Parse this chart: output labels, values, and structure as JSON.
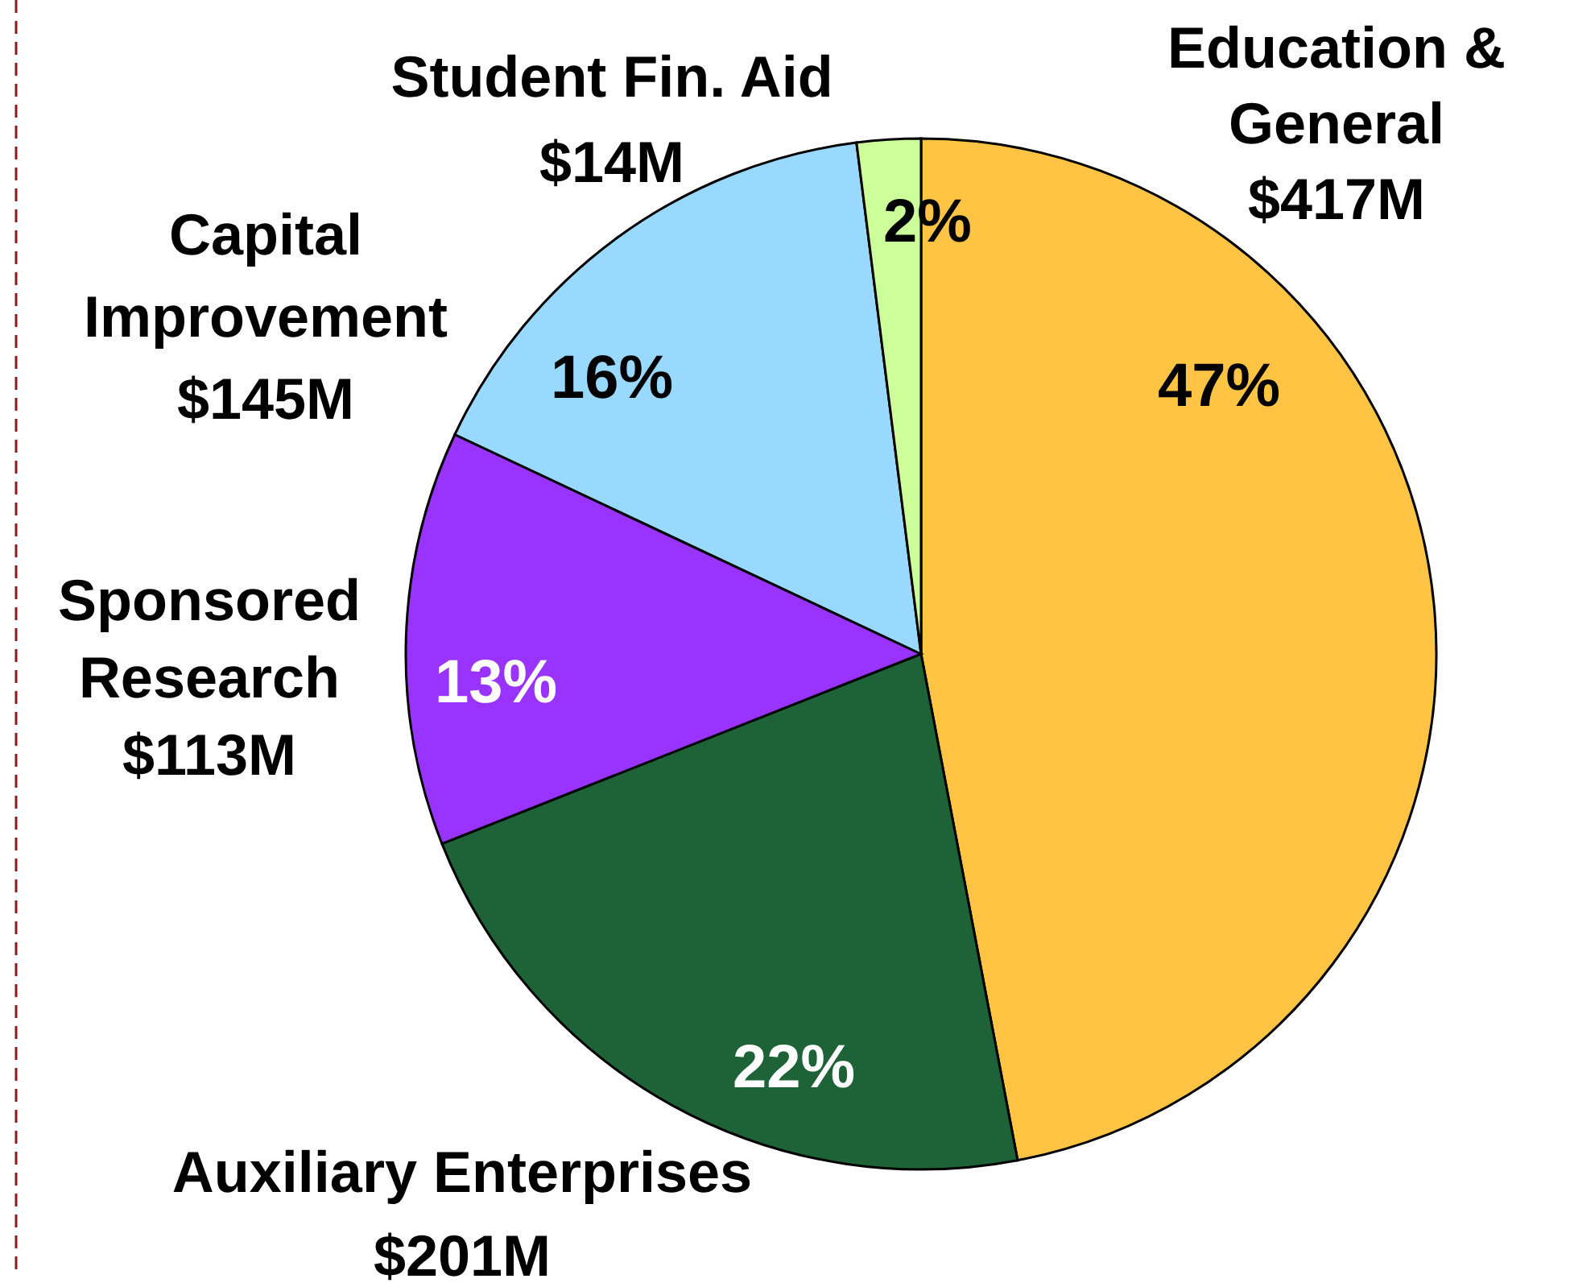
{
  "chart_data": {
    "type": "pie",
    "categories": [
      "Education &\nGeneral\n$417M",
      "Auxiliary Enterprises\n$201M",
      "Sponsored\nResearch\n$113M",
      "Capital\nImprovement\n$145M",
      "Student Fin. Aid\n$14M"
    ],
    "values": [
      47,
      22,
      13,
      16,
      2
    ],
    "value_labels": [
      "47%",
      "22%",
      "13%",
      "16%",
      "2%"
    ],
    "colors": [
      "#ffc444",
      "#1e6338",
      "#9933ff",
      "#99d9ff",
      "#ccff99"
    ]
  }
}
